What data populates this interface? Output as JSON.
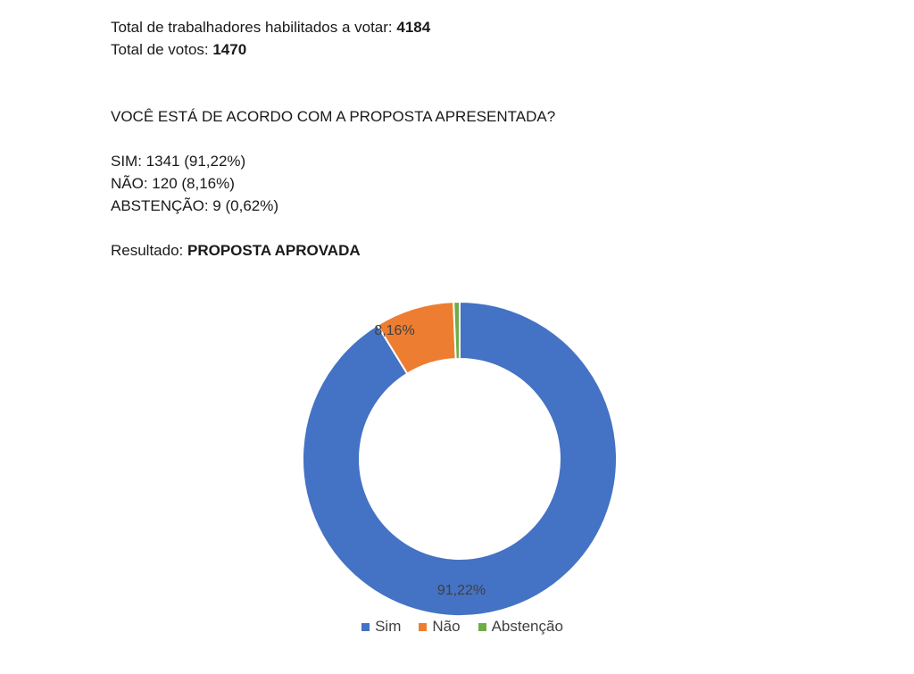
{
  "totals": {
    "eligible_label": "Total de trabalhadores habilitados a votar: ",
    "eligible_value": "4184",
    "votes_label": "Total de votos: ",
    "votes_value": "1470"
  },
  "question": "VOCÊ ESTÁ DE ACORDO COM A PROPOSTA APRESENTADA?",
  "results": {
    "sim": "SIM: 1341 (91,22%)",
    "nao": "NÃO: 120 (8,16%)",
    "abstencao": "ABSTENÇÃO: 9 (0,62%)"
  },
  "outcome": {
    "label": "Resultado: ",
    "value": "PROPOSTA APROVADA"
  },
  "chart_data": {
    "type": "pie",
    "style": "donut",
    "categories": [
      "Sim",
      "Não",
      "Abstenção"
    ],
    "values": [
      91.22,
      8.16,
      0.62
    ],
    "data_labels": [
      "91,22%",
      "8,16%",
      ""
    ],
    "colors": [
      "#4472C4",
      "#ED7D31",
      "#70AD47"
    ],
    "legend_position": "bottom"
  }
}
